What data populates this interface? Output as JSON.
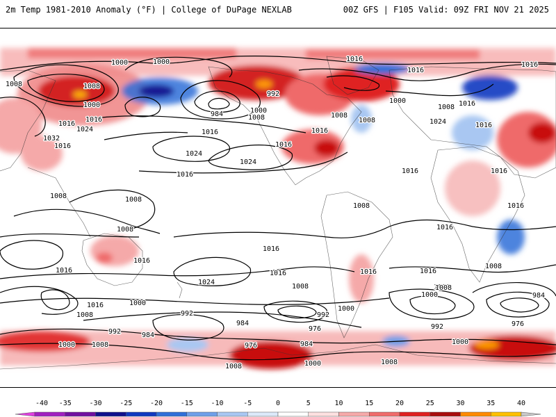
{
  "header": {
    "left": "2m Temp 1981-2010 Anomaly (°F) | College of DuPage NEXLAB",
    "right": "00Z GFS | F105 Valid: 09Z FRI NOV 21 2025"
  },
  "colorbar": {
    "ticks": [
      "-40",
      "-35",
      "-30",
      "-25",
      "-20",
      "-15",
      "-10",
      "-5",
      "0",
      "5",
      "10",
      "15",
      "20",
      "25",
      "30",
      "35",
      "40"
    ],
    "colors": [
      "#e040e0",
      "#a020c0",
      "#7010a0",
      "#10108c",
      "#1038c0",
      "#2f6fd8",
      "#6f9fe8",
      "#a9c7f2",
      "#dce9fa",
      "#ffffff",
      "#fde0e0",
      "#f5a9a9",
      "#ef6b6b",
      "#df2020",
      "#a80d0d",
      "#ff8a00",
      "#ffc000",
      "#c8c8c8"
    ]
  },
  "map": {
    "pressure_labels": [
      {
        "t": "1008"
      },
      {
        "t": "1000"
      },
      {
        "t": "1008"
      },
      {
        "t": "1000"
      },
      {
        "t": "992"
      },
      {
        "t": "984"
      },
      {
        "t": "1000"
      },
      {
        "t": "1008"
      },
      {
        "t": "1016"
      },
      {
        "t": "1016"
      },
      {
        "t": "1016"
      },
      {
        "t": "1016"
      },
      {
        "t": "1024"
      },
      {
        "t": "1016"
      },
      {
        "t": "1024"
      },
      {
        "t": "1024"
      },
      {
        "t": "1032"
      },
      {
        "t": "1016"
      },
      {
        "t": "1016"
      },
      {
        "t": "1016"
      },
      {
        "t": "1016"
      },
      {
        "t": "1016"
      },
      {
        "t": "1008"
      },
      {
        "t": "1008"
      },
      {
        "t": "1000"
      },
      {
        "t": "1000"
      },
      {
        "t": "1016"
      },
      {
        "t": "1024"
      },
      {
        "t": "1016"
      },
      {
        "t": "1008"
      },
      {
        "t": "1016"
      },
      {
        "t": "1016"
      },
      {
        "t": "1016"
      },
      {
        "t": "1008"
      },
      {
        "t": "1008"
      },
      {
        "t": "1008"
      },
      {
        "t": "1008"
      },
      {
        "t": "1008"
      },
      {
        "t": "1016"
      },
      {
        "t": "1016"
      },
      {
        "t": "1016"
      },
      {
        "t": "1024"
      },
      {
        "t": "1016"
      },
      {
        "t": "1016"
      },
      {
        "t": "1008"
      },
      {
        "t": "1016"
      },
      {
        "t": "1008"
      },
      {
        "t": "1000"
      },
      {
        "t": "1008"
      },
      {
        "t": "1016"
      },
      {
        "t": "1000"
      },
      {
        "t": "992"
      },
      {
        "t": "984"
      },
      {
        "t": "992"
      },
      {
        "t": "976"
      },
      {
        "t": "1000"
      },
      {
        "t": "984"
      },
      {
        "t": "976"
      },
      {
        "t": "1008"
      },
      {
        "t": "992"
      },
      {
        "t": "984"
      },
      {
        "t": "976"
      },
      {
        "t": "984"
      },
      {
        "t": "1000"
      },
      {
        "t": "1008"
      },
      {
        "t": "992"
      },
      {
        "t": "1000"
      },
      {
        "t": "1008"
      },
      {
        "t": "1000"
      },
      {
        "t": "1008"
      },
      {
        "t": "1016"
      }
    ]
  }
}
